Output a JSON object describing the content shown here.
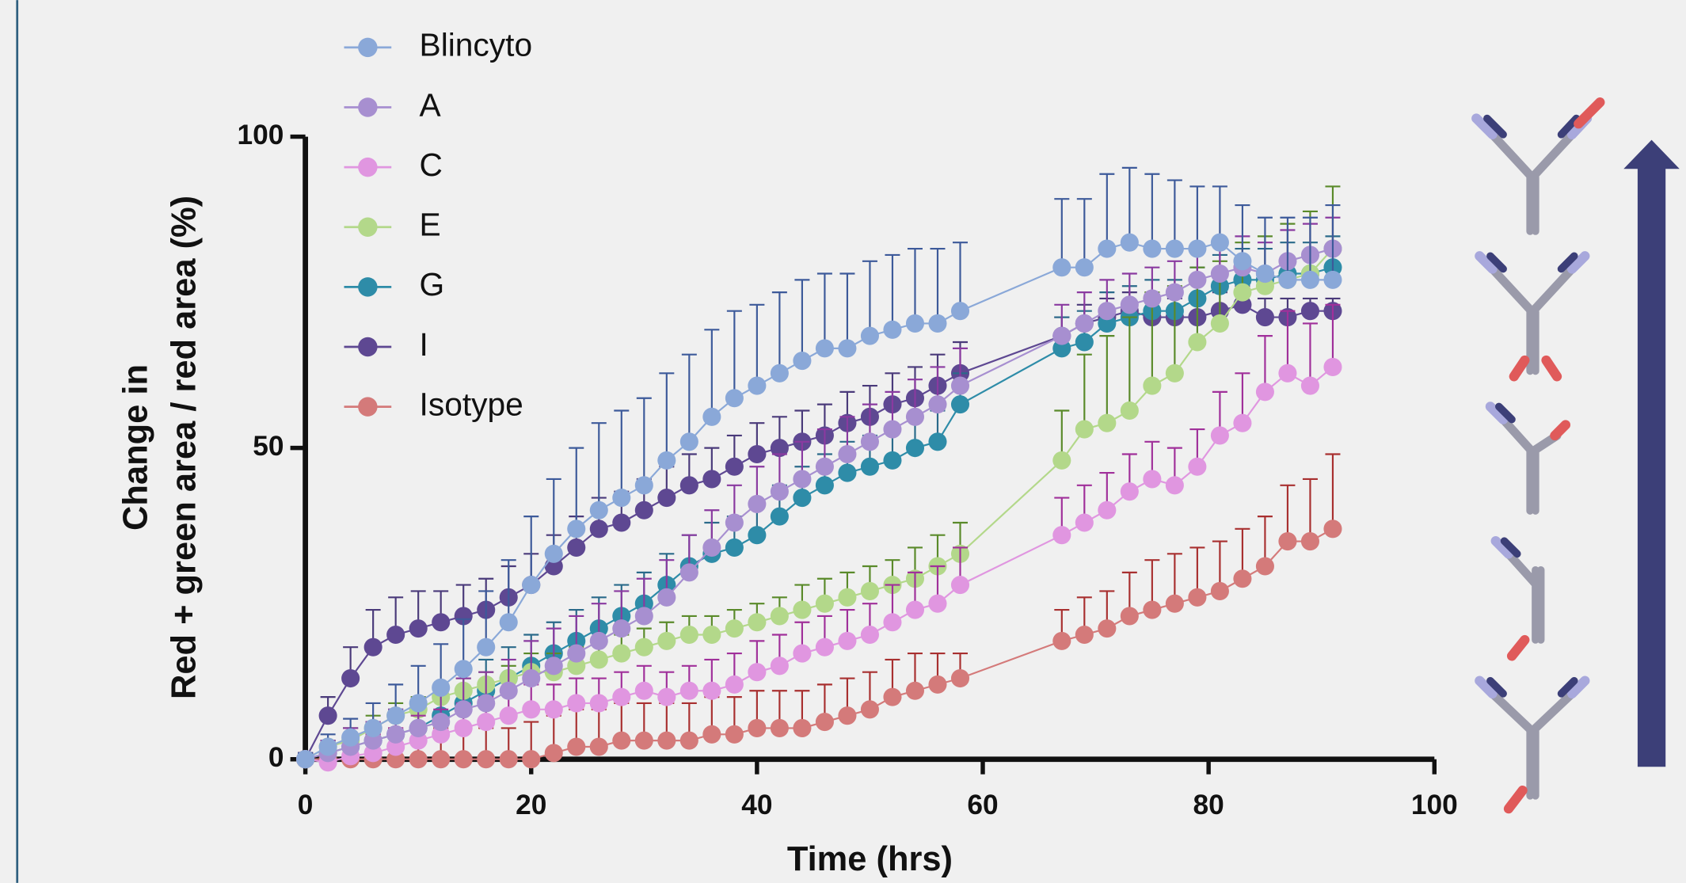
{
  "chart_data": {
    "type": "line",
    "xlabel": "Time (hrs)",
    "ylabel": [
      "Change in",
      "Red + green area / red area (%)"
    ],
    "xlim": [
      0,
      100
    ],
    "xticks": [
      0,
      20,
      40,
      60,
      80,
      100
    ],
    "ylim": [
      0,
      100
    ],
    "yticks": [
      0,
      50,
      100
    ],
    "legend": "top-left",
    "x": [
      0,
      2,
      4,
      6,
      8,
      10,
      12,
      14,
      16,
      18,
      20,
      22,
      24,
      26,
      28,
      30,
      32,
      34,
      36,
      38,
      40,
      42,
      44,
      46,
      48,
      50,
      52,
      54,
      56,
      58,
      67,
      69,
      71,
      73,
      75,
      77,
      79,
      81,
      83,
      85,
      87,
      89,
      91
    ],
    "series": [
      {
        "name": "Blincyto",
        "color": "#8aa8d8",
        "error_color": "#3d5a9a",
        "values": [
          0,
          2,
          3.5,
          5,
          7,
          9,
          11.5,
          14.5,
          18,
          22,
          28,
          33,
          37,
          40,
          42,
          44,
          48,
          51,
          55,
          58,
          60,
          62,
          64,
          66,
          66,
          68,
          69,
          70,
          70,
          72,
          79,
          79,
          82,
          83,
          82,
          82,
          82,
          83,
          80,
          78,
          77,
          77,
          77
        ],
        "errors": [
          1,
          2,
          3,
          4,
          5,
          6,
          7,
          8,
          9,
          10,
          11,
          12,
          13,
          14,
          14,
          14,
          14,
          14,
          14,
          14,
          13,
          13,
          13,
          12,
          12,
          12,
          12,
          12,
          12,
          11,
          11,
          11,
          12,
          12,
          12,
          11,
          10,
          9,
          9,
          9,
          10,
          10,
          12
        ]
      },
      {
        "name": "A",
        "color": "#a78fd0",
        "error_color": "#8a3aa0",
        "values": [
          0,
          1,
          2,
          3,
          4,
          5,
          6,
          8,
          9,
          11,
          13,
          15,
          17,
          19,
          21,
          23,
          26,
          30,
          34,
          38,
          41,
          43,
          45,
          47,
          49,
          51,
          53,
          55,
          57,
          60,
          68,
          70,
          72,
          73,
          74,
          75,
          77,
          78,
          79,
          78,
          80,
          81,
          82
        ],
        "errors": [
          1,
          2,
          3,
          3,
          4,
          4,
          5,
          5,
          5,
          5,
          6,
          6,
          6,
          6,
          6,
          6,
          6,
          6,
          6,
          6,
          6,
          6,
          6,
          6,
          6,
          6,
          6,
          6,
          6,
          6,
          5,
          5,
          5,
          5,
          5,
          5,
          5,
          5,
          5,
          5,
          5,
          5,
          5
        ]
      },
      {
        "name": "C",
        "color": "#e096e0",
        "error_color": "#a0309a",
        "values": [
          0,
          -0.5,
          0.5,
          1,
          2,
          3,
          4,
          5,
          6,
          7,
          8,
          8,
          9,
          9,
          10,
          11,
          10,
          11,
          11,
          12,
          14,
          15,
          17,
          18,
          19,
          20,
          22,
          24,
          25,
          28,
          36,
          38,
          40,
          43,
          45,
          44,
          47,
          52,
          54,
          59,
          62,
          60,
          63
        ],
        "errors": [
          1,
          2,
          3,
          3,
          3,
          4,
          4,
          4,
          4,
          4,
          4,
          4,
          4,
          4,
          4,
          4,
          4,
          4,
          5,
          5,
          5,
          5,
          5,
          5,
          5,
          5,
          6,
          6,
          6,
          6,
          6,
          6,
          6,
          6,
          6,
          6,
          6,
          7,
          8,
          9,
          10,
          10,
          10
        ]
      },
      {
        "name": "E",
        "color": "#b3d88a",
        "error_color": "#5a8a2a",
        "values": [
          0,
          2,
          3,
          5,
          7,
          8,
          10,
          11,
          12,
          13,
          14,
          14,
          15,
          16,
          17,
          18,
          19,
          20,
          20,
          21,
          22,
          23,
          24,
          25,
          26,
          27,
          28,
          29,
          31,
          33,
          48,
          53,
          54,
          56,
          60,
          62,
          67,
          70,
          75,
          76,
          77,
          78,
          82
        ],
        "errors": [
          1,
          1,
          2,
          2,
          2,
          2,
          2,
          2,
          2,
          2,
          3,
          3,
          3,
          3,
          3,
          3,
          3,
          3,
          3,
          3,
          3,
          3,
          4,
          4,
          4,
          4,
          4,
          5,
          5,
          5,
          8,
          12,
          14,
          15,
          15,
          14,
          12,
          10,
          8,
          8,
          9,
          10,
          10
        ]
      },
      {
        "name": "G",
        "color": "#2e8ca8",
        "error_color": "#2a6a8a",
        "values": [
          0,
          1,
          2,
          3,
          4,
          5,
          7,
          9,
          11,
          13,
          15,
          17,
          19,
          21,
          23,
          25,
          28,
          31,
          33,
          34,
          36,
          39,
          42,
          44,
          46,
          47,
          48,
          50,
          51,
          57,
          66,
          67,
          70,
          71,
          72,
          72,
          74,
          76,
          77,
          77,
          78,
          78,
          79
        ],
        "errors": [
          1,
          2,
          3,
          3,
          4,
          4,
          5,
          5,
          5,
          5,
          5,
          5,
          5,
          5,
          5,
          5,
          5,
          5,
          5,
          5,
          5,
          5,
          5,
          5,
          5,
          5,
          5,
          5,
          5,
          5,
          5,
          5,
          5,
          5,
          5,
          5,
          5,
          5,
          5,
          5,
          5,
          5,
          5
        ]
      },
      {
        "name": "I",
        "color": "#5e4892",
        "error_color": "#4a3a7a",
        "values": [
          0,
          7,
          13,
          18,
          20,
          21,
          22,
          23,
          24,
          26,
          28,
          31,
          34,
          37,
          38,
          40,
          42,
          44,
          45,
          47,
          49,
          50,
          51,
          52,
          54,
          55,
          57,
          58,
          60,
          62,
          68,
          70,
          71,
          72,
          71,
          71,
          71,
          72,
          73,
          71,
          71,
          72,
          72
        ],
        "errors": [
          1,
          3,
          5,
          6,
          6,
          6,
          5,
          5,
          5,
          5,
          5,
          5,
          5,
          5,
          5,
          5,
          5,
          5,
          5,
          5,
          5,
          5,
          5,
          5,
          5,
          5,
          5,
          5,
          5,
          5,
          3,
          3,
          3,
          3,
          3,
          3,
          3,
          3,
          3,
          3,
          3,
          2,
          2
        ]
      },
      {
        "name": "Isotype",
        "color": "#d47a7a",
        "error_color": "#a83030",
        "values": [
          0,
          0,
          0,
          0,
          0,
          0,
          0,
          0,
          0,
          0,
          0,
          1,
          2,
          2,
          3,
          3,
          3,
          3,
          4,
          4,
          5,
          5,
          5,
          6,
          7,
          8,
          10,
          11,
          12,
          13,
          19,
          20,
          21,
          23,
          24,
          25,
          26,
          27,
          29,
          31,
          35,
          35,
          37
        ],
        "errors": [
          1,
          2,
          3,
          4,
          5,
          5,
          5,
          5,
          5,
          5,
          6,
          6,
          6,
          6,
          6,
          6,
          6,
          6,
          6,
          6,
          6,
          6,
          6,
          6,
          6,
          6,
          6,
          6,
          5,
          4,
          5,
          6,
          6,
          7,
          8,
          8,
          8,
          8,
          8,
          8,
          9,
          10,
          12
        ]
      }
    ]
  }
}
